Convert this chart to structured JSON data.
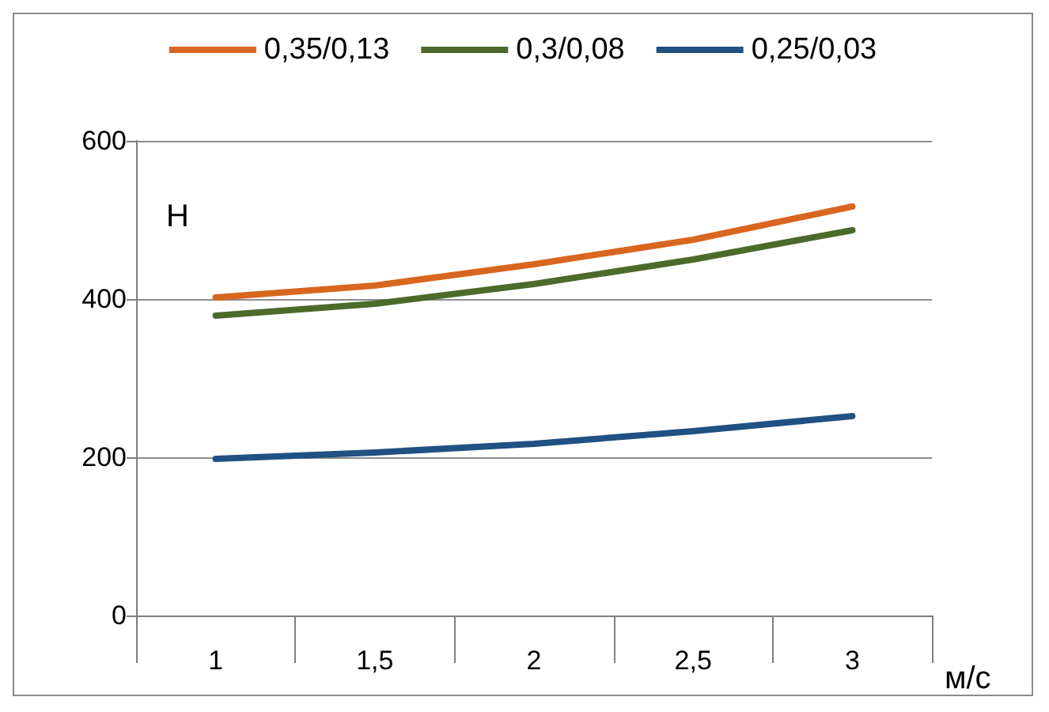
{
  "chart_data": {
    "type": "line",
    "xlabel": "м/с",
    "ylabel": "Н",
    "categories": [
      "1",
      "1,5",
      "2",
      "2,5",
      "3"
    ],
    "series": [
      {
        "name": "0,35/0,13",
        "color": "#d9661f",
        "values": [
          402,
          417,
          444,
          475,
          517
        ]
      },
      {
        "name": "0,3/0,08",
        "color": "#4b6a2b",
        "values": [
          379,
          394,
          419,
          450,
          487
        ]
      },
      {
        "name": "0,25/0,03",
        "color": "#215082",
        "values": [
          198,
          206,
          217,
          233,
          252
        ]
      }
    ],
    "ylim": [
      0,
      600
    ],
    "yticks": [
      0,
      200,
      400,
      600
    ],
    "grid": "y",
    "legend": "top",
    "marker": "none",
    "line_style": "solid"
  }
}
